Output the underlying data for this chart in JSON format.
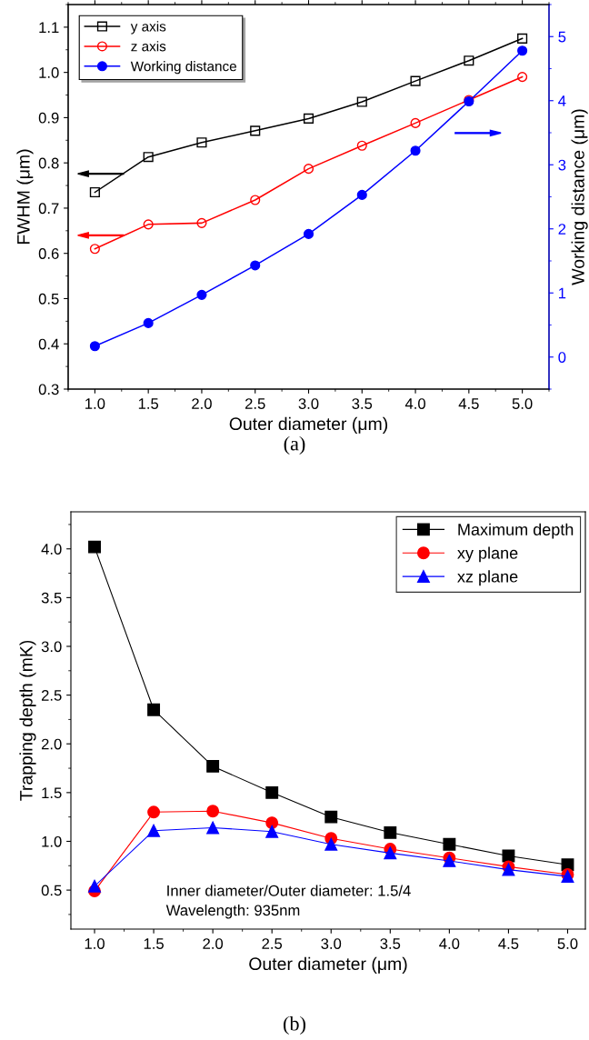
{
  "chart_data": [
    {
      "type": "line",
      "xlabel": "Outer diameter (μm)",
      "ylabel": "FWHM (μm)",
      "y2label": "Working distance (μm)",
      "annotations": [
        "(a)"
      ],
      "x": [
        1.0,
        1.5,
        2.0,
        2.5,
        3.0,
        3.5,
        4.0,
        4.5,
        5.0
      ],
      "xlim": [
        0.75,
        5.25
      ],
      "xticks": [
        {
          "value": 1,
          "label": "1.0"
        },
        1.5,
        {
          "value": 2,
          "label": "2.0"
        },
        2.5,
        {
          "value": 3,
          "label": "3.0"
        },
        3.5,
        {
          "value": 4,
          "label": "4.0"
        },
        4.5,
        {
          "value": 5,
          "label": "5.0"
        }
      ],
      "ylim": [
        0.3,
        1.15
      ],
      "yticks": [
        0.3,
        0.4,
        0.5,
        0.6,
        0.7,
        0.8,
        0.9,
        {
          "value": 1,
          "label": "1.0"
        },
        1.1
      ],
      "y2lim": [
        -0.5,
        5.5
      ],
      "y2ticks": [
        0,
        1,
        2,
        3,
        4,
        5
      ],
      "legend": "top left",
      "grid": false,
      "series": [
        {
          "name": "y axis",
          "color": "#000000",
          "marker": "square",
          "values": [
            0.735,
            0.813,
            0.845,
            0.871,
            0.898,
            0.935,
            0.981,
            1.026,
            1.075
          ]
        },
        {
          "name": "z axis",
          "color": "#ff0000",
          "marker": "circle",
          "values": [
            0.61,
            0.664,
            0.667,
            0.718,
            0.787,
            0.838,
            0.888,
            0.939,
            0.99
          ]
        },
        {
          "name": "Working distance",
          "color": "#0000ff",
          "marker": "circle",
          "axis": "y2",
          "values": [
            0.17,
            0.53,
            0.97,
            1.43,
            1.92,
            2.53,
            3.22,
            3.99,
            4.78
          ]
        }
      ]
    },
    {
      "type": "line",
      "xlabel": "Outer diameter (μm)",
      "ylabel": "Trapping depth (mK)",
      "annotations": [
        "Inner diameter/Outer diameter: 1.5/4\nWavelength: 935nm",
        "(b)"
      ],
      "x": [
        1.0,
        1.5,
        2.0,
        2.5,
        3.0,
        3.5,
        4.0,
        4.5,
        5.0
      ],
      "xlim": [
        0.8,
        5.15
      ],
      "xticks": [
        {
          "value": 1,
          "label": "1.0"
        },
        1.5,
        {
          "value": 2,
          "label": "2.0"
        },
        2.5,
        {
          "value": 3,
          "label": "3.0"
        },
        3.5,
        {
          "value": 4,
          "label": "4.0"
        },
        4.5,
        {
          "value": 5,
          "label": "5.0"
        }
      ],
      "ylim": [
        0.1,
        4.38
      ],
      "yticks": [
        0.5,
        {
          "value": 1,
          "label": "1.0"
        },
        1.5,
        {
          "value": 2,
          "label": "2.0"
        },
        2.5,
        {
          "value": 3,
          "label": "3.0"
        },
        3.5,
        {
          "value": 4,
          "label": "4.0"
        }
      ],
      "legend": "top right",
      "grid": false,
      "series": [
        {
          "name": "Maximum depth",
          "color": "#000000",
          "marker": "square",
          "values": [
            4.02,
            2.35,
            1.77,
            1.5,
            1.25,
            1.09,
            0.97,
            0.85,
            0.76
          ]
        },
        {
          "name": "xy plane",
          "color": "#ff0000",
          "marker": "circle",
          "values": [
            0.49,
            1.3,
            1.31,
            1.19,
            1.03,
            0.92,
            0.83,
            0.74,
            0.66
          ]
        },
        {
          "name": "xz plane",
          "color": "#0000ff",
          "marker": "triangle",
          "values": [
            0.54,
            1.11,
            1.14,
            1.1,
            0.97,
            0.88,
            0.8,
            0.71,
            0.64
          ]
        }
      ]
    }
  ]
}
